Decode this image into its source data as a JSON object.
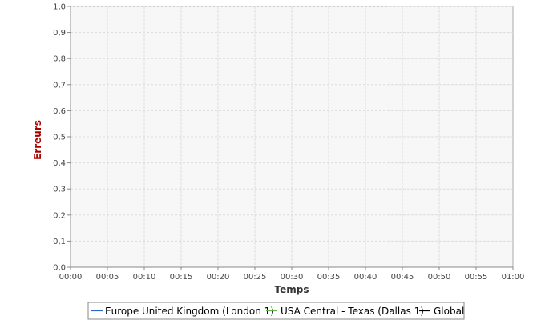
{
  "chart_data": {
    "type": "line",
    "title": "",
    "xlabel": "Temps",
    "ylabel": "Erreurs",
    "x_ticks": [
      "00:00",
      "00:05",
      "00:10",
      "00:15",
      "00:20",
      "00:25",
      "00:30",
      "00:35",
      "00:40",
      "00:45",
      "00:50",
      "00:55",
      "01:00"
    ],
    "y_ticks": [
      "0,0",
      "0,1",
      "0,2",
      "0,3",
      "0,4",
      "0,5",
      "0,6",
      "0,7",
      "0,8",
      "0,9",
      "1,0"
    ],
    "xlim": [
      "00:00",
      "01:00"
    ],
    "ylim": [
      0,
      1
    ],
    "grid": true,
    "legend_position": "bottom",
    "series": [
      {
        "name": "Europe United Kingdom (London 1)",
        "color": "#2e66c4",
        "values": []
      },
      {
        "name": "USA Central - Texas (Dallas 1)",
        "color": "#5fb24a",
        "values": []
      },
      {
        "name": "Global",
        "color": "#000000",
        "values": []
      }
    ]
  },
  "colors": {
    "ylabel": "#aa0000",
    "xlabel": "#333333",
    "plot_background": "#f7f7f7",
    "grid": "#dcdcdc"
  }
}
